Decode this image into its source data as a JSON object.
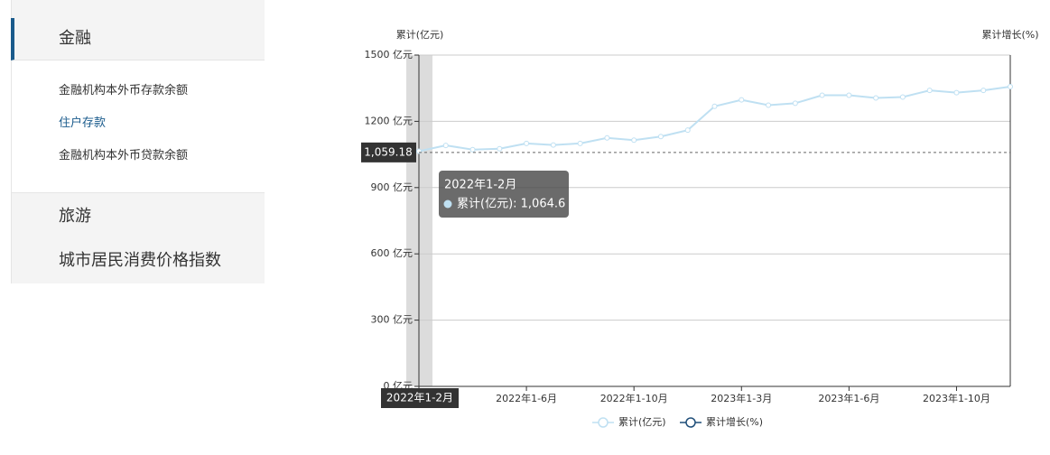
{
  "sidebar": {
    "sections": [
      {
        "title": "金融",
        "items": [
          "金融机构本外币存款余额",
          "住户存款",
          "金融机构本外币贷款余额"
        ]
      },
      {
        "title": "旅游"
      },
      {
        "title": "城市居民消费价格指数"
      }
    ]
  },
  "chart_data": {
    "type": "line",
    "y_axis_label": "累计(亿元)",
    "y2_axis_label": "累计增长(%)",
    "categories": [
      "2022年1-2月",
      null,
      null,
      null,
      "2022年1-6月",
      null,
      null,
      null,
      "2022年1-10月",
      null,
      null,
      null,
      "2023年1-3月",
      null,
      null,
      null,
      "2023年1-6月",
      null,
      null,
      null,
      "2023年1-10月",
      null,
      null
    ],
    "series": [
      {
        "name": "累计(亿元)",
        "color": "#bfe0f2",
        "values": [
          1064.6,
          1091,
          1072,
          1076,
          1100,
          1093,
          1100,
          1125,
          1115,
          1131,
          1160,
          1268,
          1297,
          1273,
          1282,
          1318,
          1318,
          1306,
          1310,
          1340,
          1330,
          1340,
          1357
        ]
      },
      {
        "name": "累计增长(%)",
        "color": "#1f4e79",
        "axis": "y2",
        "values": [
          null,
          null,
          null,
          null,
          null,
          null,
          null,
          null,
          null,
          null,
          null,
          null,
          null,
          null,
          null,
          null,
          null,
          null,
          null,
          null,
          null,
          null,
          null
        ]
      }
    ],
    "ylim": [
      0,
      1500
    ],
    "yticks": [
      {
        "value": 0,
        "label": "0 亿元"
      },
      {
        "value": 300,
        "label": "300 亿元"
      },
      {
        "value": 600,
        "label": "600 亿元"
      },
      {
        "value": 900,
        "label": "900 亿元"
      },
      {
        "value": 1200,
        "label": "1200 亿元"
      },
      {
        "value": 1500,
        "label": "1500 亿元"
      }
    ],
    "grid": true,
    "axis_pointer": {
      "value": 1059.18,
      "label": "1,059.18"
    },
    "tooltip": {
      "text": "累计(亿元): 1,064.6"
    },
    "legend": "bottom"
  }
}
